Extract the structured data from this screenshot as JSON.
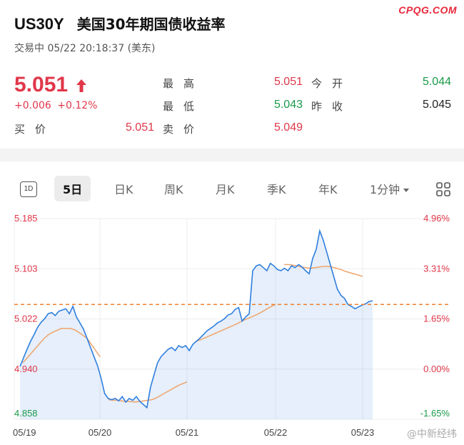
{
  "watermark_top": "CPQG.COM",
  "header": {
    "symbol": "US30Y",
    "name": "美国30年期国债收益率",
    "status": "交易中 05/22 20:18:37 (美东)"
  },
  "quote": {
    "price": "5.051",
    "change": "+0.006",
    "change_pct": "+0.12%",
    "high_label": "最高",
    "high": "5.051",
    "open_label": "今开",
    "open": "5.044",
    "low_label": "最低",
    "low": "5.043",
    "prev_close_label": "昨收",
    "prev_close": "5.045",
    "bid_label": "买价",
    "bid": "5.051",
    "ask_label": "卖价",
    "ask": "5.049"
  },
  "tabs": {
    "intraday_icon": "1D",
    "items": [
      "5日",
      "日K",
      "周K",
      "月K",
      "季K",
      "年K",
      "1分钟"
    ],
    "active": "5日"
  },
  "colors": {
    "up": "#e0374a",
    "down": "#1a9a4a",
    "line": "#2f7fde",
    "ma": "#f0a36b",
    "reference": "#f08030"
  },
  "chart_data": {
    "type": "line",
    "left_ticks": [
      "5.185",
      "5.103",
      "5.022",
      "4.940",
      "4.858"
    ],
    "right_ticks": [
      "4.96%",
      "3.31%",
      "1.65%",
      "0.00%",
      "-1.65%"
    ],
    "x_ticks": [
      "05/19",
      "05/20",
      "05/21",
      "05/22",
      "05/23"
    ],
    "ylim": [
      4.858,
      5.185
    ],
    "reference": 5.045,
    "series": [
      {
        "values": [
          4.944,
          4.958,
          4.972,
          4.985,
          4.996,
          5.008,
          5.016,
          5.022,
          5.03,
          5.032,
          5.027,
          5.034,
          5.036,
          5.038,
          5.03,
          5.042,
          5.025,
          5.015,
          5.005,
          4.99,
          4.975,
          4.96,
          4.945,
          4.925,
          4.9,
          4.892,
          4.89,
          4.892,
          4.888,
          4.895,
          4.886,
          4.892,
          4.889,
          4.895,
          4.887,
          4.882,
          4.877,
          4.91,
          4.93,
          4.95,
          4.96,
          4.966,
          4.972,
          4.975,
          4.97,
          4.978,
          4.975,
          4.978,
          4.97,
          4.98,
          4.985,
          4.99,
          4.996,
          5.002,
          5.006,
          5.01,
          5.015,
          5.018,
          5.022,
          5.028,
          5.03,
          5.037,
          5.04,
          5.018,
          5.025,
          5.03,
          5.1,
          5.108,
          5.11,
          5.105,
          5.1,
          5.112,
          5.108,
          5.102,
          5.1,
          5.104,
          5.1,
          5.108,
          5.105,
          5.11,
          5.106,
          5.1,
          5.095,
          5.12,
          5.135,
          5.165,
          5.15,
          5.13,
          5.11,
          5.09,
          5.07,
          5.06,
          5.055,
          5.045,
          5.042,
          5.038,
          5.041,
          5.044,
          5.046,
          5.05,
          5.051
        ]
      }
    ],
    "ma_series": [
      {
        "values": [
          4.95,
          4.958,
          4.966,
          4.974,
          4.982,
          4.99,
          4.996,
          5.0,
          5.003,
          5.006,
          5.006,
          5.006,
          5.004,
          5.0,
          4.995,
          4.99,
          4.98,
          4.97,
          4.96
        ]
      },
      {
        "values": [
          4.89,
          4.889,
          4.889,
          4.888,
          4.887,
          4.887,
          4.886,
          4.887,
          4.888,
          4.889,
          4.89,
          4.893,
          4.897,
          4.901,
          4.905,
          4.909,
          4.913,
          4.916,
          4.919
        ]
      },
      {
        "values": [
          4.985,
          4.987,
          4.99,
          4.993,
          4.996,
          4.999,
          5.002,
          5.005,
          5.008,
          5.011,
          5.014,
          5.018,
          5.021,
          5.024,
          5.027,
          5.03,
          5.034,
          5.038,
          5.042,
          5.045
        ]
      },
      {
        "values": [
          5.11,
          5.11,
          5.109,
          5.108,
          5.106,
          5.105,
          5.104,
          5.105,
          5.106,
          5.107,
          5.107,
          5.106,
          5.104,
          5.102,
          5.099,
          5.097,
          5.095,
          5.093,
          5.091
        ]
      }
    ]
  },
  "watermark_bottom": "@中新经纬"
}
